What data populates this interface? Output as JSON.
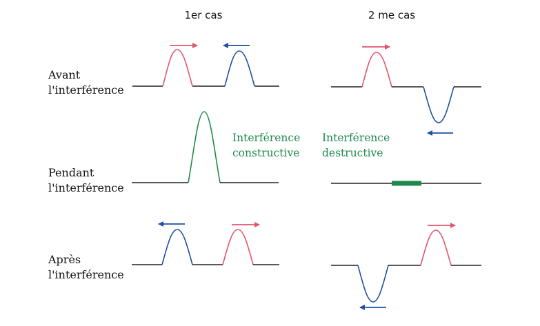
{
  "columns": {
    "case1": "1er cas",
    "case2": "2 me cas"
  },
  "rows": {
    "before": [
      "Avant",
      "l'interférence"
    ],
    "during": [
      "Pendant",
      "l'interférence"
    ],
    "after": [
      "Après",
      "l'interférence"
    ]
  },
  "notes": {
    "constructive": [
      "Interférence",
      "constructive"
    ],
    "destructive": [
      "Interférence",
      "destructive"
    ]
  },
  "colors": {
    "pulse_a": "#e0556b",
    "pulse_b": "#1f4fa3",
    "result": "#1f8a4c",
    "baseline": "#222222"
  },
  "icons": {
    "arrow_right": "arrow-right-icon",
    "arrow_left": "arrow-left-icon"
  }
}
